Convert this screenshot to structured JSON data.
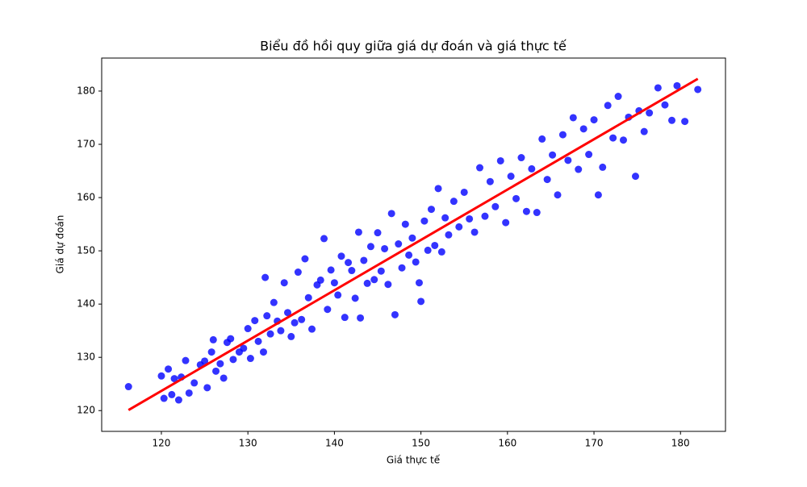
{
  "chart_data": {
    "type": "scatter",
    "title": "Biểu đồ hồi quy giữa giá dự đoán và giá thực tế",
    "xlabel": "Giá thực tế",
    "ylabel": "Giá dự đoán",
    "color": "#0000ff",
    "x": [
      116.2,
      120,
      120.3,
      120.8,
      121.2,
      121.5,
      122,
      122.3,
      122.8,
      123.2,
      123.8,
      124.5,
      125,
      125.3,
      125.8,
      126,
      126.3,
      126.8,
      127.2,
      127.6,
      128,
      128.3,
      129,
      129.5,
      130,
      130.3,
      130.8,
      131.2,
      131.8,
      132,
      132.2,
      132.6,
      133,
      133.4,
      133.8,
      134.2,
      134.6,
      135,
      135.4,
      135.8,
      136.2,
      136.6,
      137,
      137.4,
      138,
      138.4,
      138.8,
      139.2,
      139.6,
      140,
      140.4,
      140.8,
      141.2,
      141.6,
      142,
      142.4,
      142.8,
      143,
      143.4,
      143.8,
      144.2,
      144.6,
      145,
      145.4,
      145.8,
      146.2,
      146.6,
      147,
      147.4,
      147.8,
      148.2,
      148.6,
      149,
      149.4,
      149.8,
      150,
      150.4,
      150.8,
      151.2,
      151.6,
      152,
      152.4,
      152.8,
      153.2,
      153.8,
      154.4,
      155,
      155.6,
      156.2,
      156.8,
      157.4,
      158,
      158.6,
      159.2,
      159.8,
      160.4,
      161,
      161.6,
      162.2,
      162.8,
      163.4,
      164,
      164.6,
      165.2,
      165.8,
      166.4,
      167,
      167.6,
      168.2,
      168.8,
      169.4,
      170,
      170.5,
      171,
      171.6,
      172.2,
      172.8,
      173.4,
      174,
      174.8,
      175.2,
      175.8,
      176.4,
      177.4,
      178.2,
      179,
      179.6,
      180.5,
      182
    ],
    "y": [
      124.5,
      126.5,
      122.3,
      127.8,
      123.0,
      126.0,
      122.0,
      126.3,
      129.4,
      123.3,
      125.2,
      128.6,
      129.3,
      124.3,
      131.0,
      133.3,
      127.4,
      128.8,
      126.1,
      132.8,
      133.5,
      129.6,
      131.0,
      131.7,
      135.4,
      129.8,
      136.9,
      133.0,
      131.0,
      145.0,
      137.8,
      134.4,
      140.3,
      136.8,
      135.0,
      144.0,
      138.4,
      133.9,
      136.5,
      146.0,
      137.1,
      148.5,
      141.2,
      135.3,
      143.6,
      144.5,
      152.3,
      139.0,
      146.4,
      144.0,
      141.7,
      149.0,
      137.5,
      147.8,
      146.3,
      141.1,
      153.5,
      137.4,
      148.2,
      143.9,
      150.8,
      144.6,
      153.4,
      146.2,
      150.4,
      143.7,
      157.0,
      138.0,
      151.3,
      146.8,
      155.0,
      149.2,
      152.4,
      147.9,
      144.0,
      140.5,
      155.6,
      150.1,
      157.8,
      151.0,
      161.7,
      149.8,
      156.2,
      153.0,
      159.3,
      154.5,
      161.0,
      156.0,
      153.5,
      165.6,
      156.5,
      163.0,
      158.3,
      166.9,
      155.3,
      164.0,
      159.8,
      167.5,
      157.4,
      165.4,
      157.2,
      171.0,
      163.4,
      168.0,
      160.5,
      171.8,
      167.0,
      175.0,
      165.3,
      172.9,
      168.1,
      174.6,
      160.5,
      165.7,
      177.3,
      171.2,
      179.0,
      170.8,
      175.1,
      164.0,
      176.3,
      172.4,
      175.9,
      180.6,
      177.4,
      174.5,
      181.0,
      174.3,
      180.3
    ],
    "regression_line": {
      "x": [
        116.2,
        182
      ],
      "y": [
        120.1,
        182.3
      ],
      "color": "#ff0000"
    },
    "xlim": [
      113.1,
      185.2
    ],
    "ylim": [
      116.1,
      186.2
    ],
    "xticks": [
      120,
      130,
      140,
      150,
      160,
      170,
      180
    ],
    "yticks": [
      120,
      130,
      140,
      150,
      160,
      170,
      180
    ]
  }
}
